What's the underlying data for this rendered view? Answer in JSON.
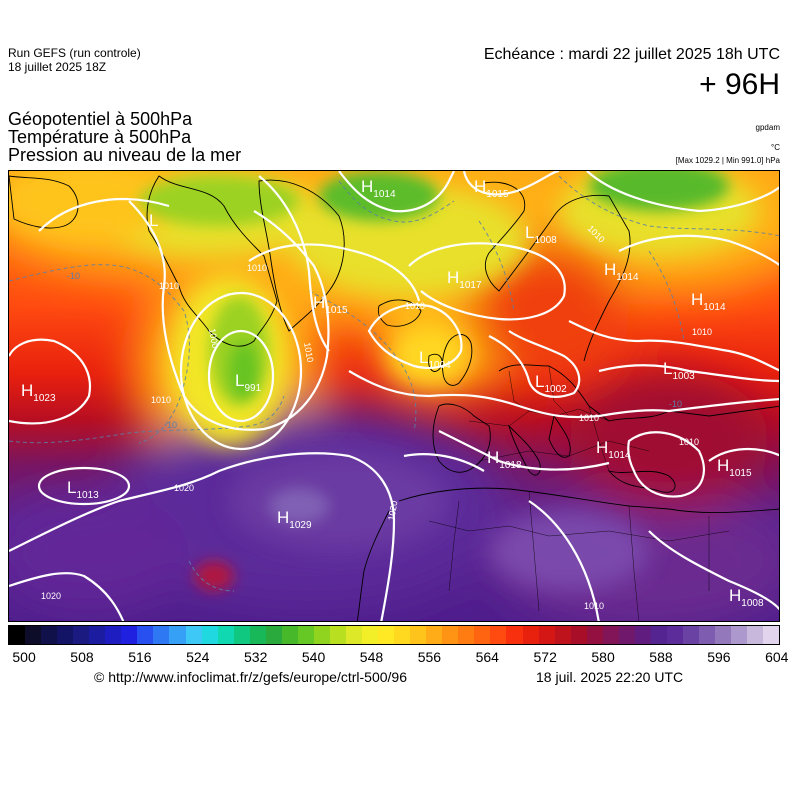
{
  "header": {
    "run_line1": "Run GEFS (run controle)",
    "run_line2": "18 juillet 2025 18Z",
    "echeance": "Echéance : mardi 22 juillet 2025 18h UTC",
    "lead": "+ 96H",
    "var1": "Géopotentiel à 500hPa",
    "var2": "Température à 500hPa",
    "var3": "Pression au niveau de la mer",
    "unit1": "gpdam",
    "unit2": "°C",
    "unit3": "[Max 1029.2 | Min 991.0] hPa"
  },
  "colorbar": {
    "colors": [
      "#000000",
      "#0d0d2a",
      "#10104a",
      "#141466",
      "#1a1a80",
      "#1c1ca0",
      "#1d1dc2",
      "#2020e0",
      "#2850f0",
      "#2e78f4",
      "#36a0f6",
      "#3ec8f6",
      "#20d8e0",
      "#10d8b0",
      "#10c880",
      "#18b858",
      "#2aaa3c",
      "#46b82a",
      "#66c824",
      "#90d420",
      "#b8e020",
      "#dce828",
      "#f2ee28",
      "#ffe824",
      "#ffd820",
      "#ffc41c",
      "#ffac18",
      "#ff9414",
      "#ff7c12",
      "#ff6410",
      "#ff4a10",
      "#f8300e",
      "#e8200e",
      "#d41614",
      "#be121c",
      "#a80e28",
      "#941040",
      "#821458",
      "#70186c",
      "#601c7e",
      "#542490",
      "#5c2c9a",
      "#6a42a4",
      "#7e5cb0",
      "#9478bc",
      "#ac98cc",
      "#c8b8dc",
      "#e2d4ec"
    ],
    "ticks": [
      "500",
      "508",
      "516",
      "524",
      "532",
      "540",
      "548",
      "556",
      "564",
      "572",
      "580",
      "588",
      "596",
      "604"
    ]
  },
  "map": {
    "pressure_centers": [
      {
        "type": "H",
        "value": "1014"
      },
      {
        "type": "H",
        "value": "1015"
      },
      {
        "type": "L",
        "value": "1008"
      },
      {
        "type": "H",
        "value": "1017"
      },
      {
        "type": "H",
        "value": "1014"
      },
      {
        "type": "H",
        "value": "1014"
      },
      {
        "type": "H",
        "value": "1015"
      },
      {
        "type": "L",
        "value": "1004"
      },
      {
        "type": "L",
        "value": "991"
      },
      {
        "type": "H",
        "value": "1023"
      },
      {
        "type": "L",
        "value": "1002"
      },
      {
        "type": "L",
        "value": "1003"
      },
      {
        "type": "H",
        "value": "1018"
      },
      {
        "type": "H",
        "value": "1014"
      },
      {
        "type": "H",
        "value": "1015"
      },
      {
        "type": "L",
        "value": "1013"
      },
      {
        "type": "H",
        "value": "1029"
      },
      {
        "type": "H",
        "value": "1008"
      },
      {
        "type": "L",
        "value": ""
      }
    ],
    "isobar_labels": [
      "1010",
      "1010",
      "1010",
      "1010",
      "1000",
      "1010",
      "1010",
      "1010",
      "1010",
      "1020",
      "1020",
      "1020",
      "1010",
      "1010"
    ],
    "isotherm_labels": [
      "-10",
      "-10",
      "-10"
    ]
  },
  "footer": {
    "source": "© http://www.infoclimat.fr/z/gefs/europe/ctrl-500/96",
    "generated": "18 juil. 2025 22:20 UTC"
  }
}
